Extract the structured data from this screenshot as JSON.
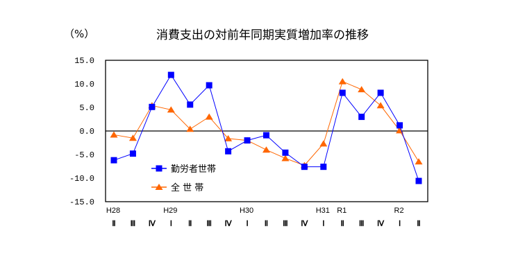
{
  "chart_data": {
    "type": "line",
    "title": "消費支出の対前年同期実質増加率の推移",
    "unit_label": "（%）",
    "xlabel": "",
    "ylabel": "%",
    "ylim": [
      -15.0,
      15.0
    ],
    "yticks": [
      "15.0",
      "10.0",
      "5.0",
      "0.0",
      "-5.0",
      "-10.0",
      "-15.0"
    ],
    "grid": false,
    "legend_position": "inside-lower-left",
    "categories": [
      "H28 II",
      "III",
      "IV",
      "H29 I",
      "II",
      "III",
      "IV",
      "H30 I",
      "II",
      "III",
      "IV",
      "H31 I",
      "R1 II",
      "III",
      "IV",
      "R2 I",
      "II"
    ],
    "x_year_labels": [
      "H28",
      "",
      "",
      "H29",
      "",
      "",
      "",
      "H30",
      "",
      "",
      "",
      "H31",
      "R1",
      "",
      "",
      "R2",
      ""
    ],
    "x_quarter_labels": [
      "Ⅱ",
      "Ⅲ",
      "Ⅳ",
      "Ⅰ",
      "Ⅱ",
      "Ⅲ",
      "Ⅳ",
      "Ⅰ",
      "Ⅱ",
      "Ⅲ",
      "Ⅳ",
      "Ⅰ",
      "Ⅱ",
      "Ⅲ",
      "Ⅳ",
      "Ⅰ",
      "Ⅱ"
    ],
    "series": [
      {
        "name": "勤労者世帯",
        "color": "#0000ff",
        "marker": "square",
        "values": [
          -6.2,
          -4.8,
          5.1,
          11.9,
          5.6,
          9.7,
          -4.3,
          -2.0,
          -0.9,
          -4.6,
          -7.6,
          -7.6,
          8.1,
          3.0,
          8.1,
          1.2,
          -10.6
        ]
      },
      {
        "name": "全世帯",
        "legend_label": "全 世 帯",
        "color": "#ff6600",
        "marker": "triangle",
        "values": [
          -0.8,
          -1.5,
          5.4,
          4.5,
          0.4,
          3.0,
          -1.6,
          -2.0,
          -4.0,
          -5.8,
          -7.3,
          -2.7,
          10.5,
          8.8,
          5.4,
          0.1,
          -6.5
        ]
      }
    ]
  }
}
